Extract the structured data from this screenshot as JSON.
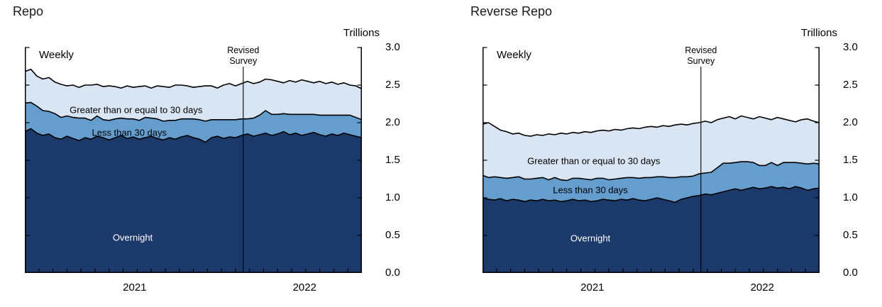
{
  "page": {
    "background_color": "#ffffff"
  },
  "chart_data": [
    {
      "type": "area",
      "stacked": true,
      "title": "Repo",
      "unit_label": "Trillions",
      "frequency_label": "Weekly",
      "ylim": [
        0,
        3.0
      ],
      "ytick_step": 0.5,
      "ytick_labels": [
        "3.0",
        "2.5",
        "2.0",
        "1.5",
        "1.0",
        "0.5",
        "0.0"
      ],
      "gridlines": false,
      "legend_position": "inline-labels",
      "x_months_span": 24,
      "x_year_labels": [
        {
          "label": "2021",
          "pos": 0.326
        },
        {
          "label": "2022",
          "pos": 0.83
        }
      ],
      "annotation": {
        "label": "Revised Survey",
        "pos": 0.648
      },
      "outline_color": "#000000",
      "series": [
        {
          "name": "Overnight",
          "color": "#1b3a6b",
          "label_color": "#ffffff",
          "label_pos": {
            "x": 0.32,
            "y": 0.47
          },
          "values": [
            1.88,
            1.92,
            1.86,
            1.83,
            1.85,
            1.8,
            1.78,
            1.82,
            1.79,
            1.76,
            1.8,
            1.78,
            1.82,
            1.8,
            1.77,
            1.8,
            1.83,
            1.79,
            1.81,
            1.78,
            1.8,
            1.82,
            1.79,
            1.77,
            1.8,
            1.78,
            1.81,
            1.83,
            1.8,
            1.78,
            1.74,
            1.8,
            1.82,
            1.79,
            1.81,
            1.8,
            1.83,
            1.85,
            1.82,
            1.84,
            1.86,
            1.83,
            1.85,
            1.88,
            1.84,
            1.86,
            1.83,
            1.85,
            1.87,
            1.84,
            1.82,
            1.85,
            1.83,
            1.86,
            1.84,
            1.82,
            1.8
          ]
        },
        {
          "name": "Less than 30 days",
          "color": "#649dce",
          "label_color": "#000000",
          "label_pos": {
            "x": 0.31,
            "y": 1.87
          },
          "values": [
            0.38,
            0.35,
            0.36,
            0.33,
            0.3,
            0.32,
            0.29,
            0.27,
            0.28,
            0.3,
            0.26,
            0.25,
            0.27,
            0.24,
            0.26,
            0.25,
            0.23,
            0.26,
            0.24,
            0.25,
            0.27,
            0.24,
            0.26,
            0.25,
            0.23,
            0.25,
            0.24,
            0.22,
            0.25,
            0.26,
            0.28,
            0.24,
            0.22,
            0.25,
            0.23,
            0.24,
            0.22,
            0.2,
            0.24,
            0.26,
            0.3,
            0.28,
            0.26,
            0.24,
            0.27,
            0.25,
            0.28,
            0.26,
            0.24,
            0.26,
            0.28,
            0.25,
            0.27,
            0.24,
            0.26,
            0.25,
            0.24
          ]
        },
        {
          "name": "Greater than or equal to 30 days",
          "color": "#d9e5f3",
          "label_color": "#000000",
          "label_pos": {
            "x": 0.33,
            "y": 2.17
          },
          "values": [
            0.42,
            0.44,
            0.4,
            0.42,
            0.45,
            0.42,
            0.44,
            0.4,
            0.43,
            0.41,
            0.44,
            0.47,
            0.42,
            0.44,
            0.46,
            0.43,
            0.4,
            0.44,
            0.42,
            0.45,
            0.42,
            0.4,
            0.44,
            0.46,
            0.44,
            0.47,
            0.45,
            0.44,
            0.42,
            0.44,
            0.47,
            0.45,
            0.42,
            0.46,
            0.48,
            0.45,
            0.47,
            0.5,
            0.46,
            0.44,
            0.42,
            0.46,
            0.44,
            0.41,
            0.45,
            0.43,
            0.46,
            0.44,
            0.42,
            0.45,
            0.42,
            0.44,
            0.41,
            0.43,
            0.4,
            0.42,
            0.41
          ]
        }
      ]
    },
    {
      "type": "area",
      "stacked": true,
      "title": "Reverse Repo",
      "unit_label": "Trillions",
      "frequency_label": "Weekly",
      "ylim": [
        0,
        3.0
      ],
      "ytick_step": 0.5,
      "ytick_labels": [
        "3.0",
        "2.5",
        "2.0",
        "1.5",
        "1.0",
        "0.5",
        "0.0"
      ],
      "gridlines": false,
      "legend_position": "inline-labels",
      "x_months_span": 24,
      "x_year_labels": [
        {
          "label": "2021",
          "pos": 0.326
        },
        {
          "label": "2022",
          "pos": 0.83
        }
      ],
      "annotation": {
        "label": "Revised Survey",
        "pos": 0.648
      },
      "outline_color": "#000000",
      "series": [
        {
          "name": "Overnight",
          "color": "#1b3a6b",
          "label_color": "#ffffff",
          "label_pos": {
            "x": 0.32,
            "y": 0.46
          },
          "values": [
            1.0,
            0.98,
            0.97,
            0.99,
            0.96,
            0.98,
            0.97,
            0.95,
            0.97,
            0.96,
            0.98,
            0.96,
            0.97,
            0.95,
            0.96,
            0.98,
            0.96,
            0.97,
            0.95,
            0.96,
            0.98,
            0.97,
            0.96,
            0.98,
            0.97,
            0.99,
            0.97,
            0.96,
            0.98,
            1.0,
            0.98,
            0.96,
            0.94,
            0.98,
            1.0,
            1.02,
            1.03,
            1.05,
            1.04,
            1.06,
            1.08,
            1.1,
            1.12,
            1.1,
            1.12,
            1.14,
            1.12,
            1.13,
            1.15,
            1.13,
            1.14,
            1.12,
            1.15,
            1.13,
            1.1,
            1.12,
            1.13
          ]
        },
        {
          "name": "Less than 30 days",
          "color": "#649dce",
          "label_color": "#000000",
          "label_pos": {
            "x": 0.32,
            "y": 1.1
          },
          "values": [
            0.3,
            0.29,
            0.31,
            0.28,
            0.3,
            0.29,
            0.31,
            0.3,
            0.28,
            0.3,
            0.29,
            0.28,
            0.3,
            0.29,
            0.27,
            0.28,
            0.3,
            0.28,
            0.29,
            0.3,
            0.28,
            0.27,
            0.29,
            0.28,
            0.3,
            0.28,
            0.29,
            0.31,
            0.29,
            0.28,
            0.3,
            0.31,
            0.33,
            0.3,
            0.28,
            0.27,
            0.29,
            0.28,
            0.3,
            0.34,
            0.38,
            0.36,
            0.35,
            0.38,
            0.36,
            0.33,
            0.31,
            0.3,
            0.32,
            0.3,
            0.33,
            0.35,
            0.32,
            0.33,
            0.35,
            0.34,
            0.32
          ]
        },
        {
          "name": "Greater than or equal to 30 days",
          "color": "#d9e5f3",
          "label_color": "#000000",
          "label_pos": {
            "x": 0.33,
            "y": 1.49
          },
          "values": [
            0.68,
            0.73,
            0.67,
            0.63,
            0.62,
            0.58,
            0.58,
            0.58,
            0.57,
            0.58,
            0.56,
            0.61,
            0.57,
            0.62,
            0.62,
            0.61,
            0.6,
            0.63,
            0.63,
            0.63,
            0.64,
            0.65,
            0.66,
            0.64,
            0.65,
            0.66,
            0.66,
            0.67,
            0.68,
            0.66,
            0.68,
            0.68,
            0.7,
            0.7,
            0.69,
            0.7,
            0.68,
            0.69,
            0.66,
            0.64,
            0.6,
            0.62,
            0.58,
            0.61,
            0.59,
            0.58,
            0.65,
            0.63,
            0.57,
            0.64,
            0.58,
            0.56,
            0.54,
            0.58,
            0.6,
            0.56,
            0.55
          ]
        }
      ]
    }
  ]
}
